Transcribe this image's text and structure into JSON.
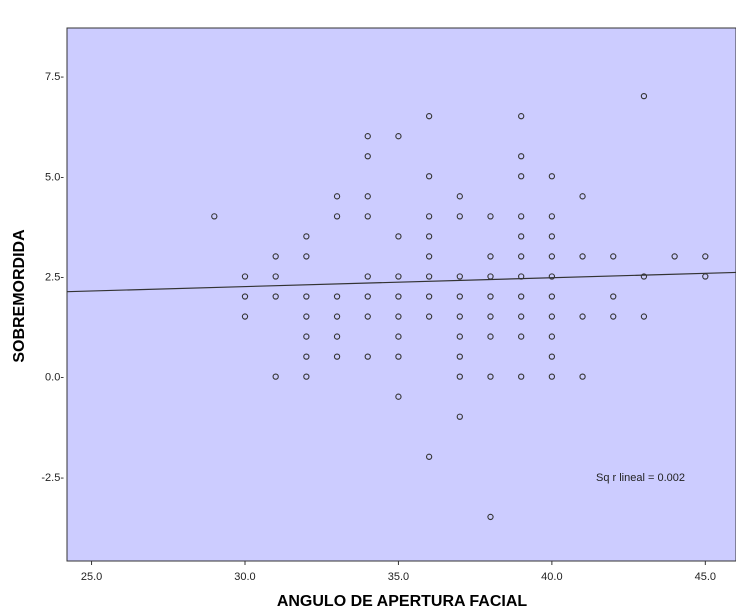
{
  "chart_data": {
    "type": "scatter",
    "xlabel": "ANGULO DE APERTURA FACIAL",
    "ylabel": "SOBREMORDIDA",
    "xlim": [
      24.2,
      46.0
    ],
    "ylim": [
      -4.6,
      8.7
    ],
    "x_ticks": [
      25.0,
      30.0,
      35.0,
      40.0,
      45.0
    ],
    "x_tick_labels": [
      "25.0",
      "30.0",
      "35.0",
      "40.0",
      "45.0"
    ],
    "y_ticks": [
      7.5,
      5.0,
      2.5,
      0.0,
      -2.5
    ],
    "y_tick_labels": [
      "7.5-",
      "5.0-",
      "2.5-",
      "0.0-",
      "-2.5-"
    ],
    "plot_background": "#ccccff",
    "marker_color": "#333333",
    "fit_line": {
      "type": "linear",
      "x": [
        24.2,
        46.0
      ],
      "y": [
        2.12,
        2.6
      ],
      "color": "#333333"
    },
    "annotation": "Sq r lineal = 0.002",
    "grid": false,
    "legend": "none",
    "points": [
      {
        "x": 29,
        "y": 4
      },
      {
        "x": 30,
        "y": 2.5
      },
      {
        "x": 30,
        "y": 2
      },
      {
        "x": 30,
        "y": 1.5
      },
      {
        "x": 31,
        "y": 3
      },
      {
        "x": 31,
        "y": 2.5
      },
      {
        "x": 31,
        "y": 2
      },
      {
        "x": 31,
        "y": 0
      },
      {
        "x": 32,
        "y": 3.5
      },
      {
        "x": 32,
        "y": 3
      },
      {
        "x": 32,
        "y": 2
      },
      {
        "x": 32,
        "y": 1.5
      },
      {
        "x": 32,
        "y": 1
      },
      {
        "x": 32,
        "y": 0.5
      },
      {
        "x": 32,
        "y": 0
      },
      {
        "x": 33,
        "y": 4.5
      },
      {
        "x": 33,
        "y": 4
      },
      {
        "x": 33,
        "y": 2
      },
      {
        "x": 33,
        "y": 1.5
      },
      {
        "x": 33,
        "y": 1
      },
      {
        "x": 33,
        "y": 0.5
      },
      {
        "x": 34,
        "y": 6
      },
      {
        "x": 34,
        "y": 5.5
      },
      {
        "x": 34,
        "y": 4.5
      },
      {
        "x": 34,
        "y": 4
      },
      {
        "x": 34,
        "y": 2.5
      },
      {
        "x": 34,
        "y": 2
      },
      {
        "x": 34,
        "y": 1.5
      },
      {
        "x": 34,
        "y": 0.5
      },
      {
        "x": 35,
        "y": 6
      },
      {
        "x": 35,
        "y": 3.5
      },
      {
        "x": 35,
        "y": 2.5
      },
      {
        "x": 35,
        "y": 2
      },
      {
        "x": 35,
        "y": 1.5
      },
      {
        "x": 35,
        "y": 1
      },
      {
        "x": 35,
        "y": 0.5
      },
      {
        "x": 35,
        "y": -0.5
      },
      {
        "x": 36,
        "y": 6.5
      },
      {
        "x": 36,
        "y": 5
      },
      {
        "x": 36,
        "y": 4
      },
      {
        "x": 36,
        "y": 3.5
      },
      {
        "x": 36,
        "y": 3
      },
      {
        "x": 36,
        "y": 2.5
      },
      {
        "x": 36,
        "y": 2
      },
      {
        "x": 36,
        "y": 1.5
      },
      {
        "x": 36,
        "y": -2
      },
      {
        "x": 37,
        "y": 4.5
      },
      {
        "x": 37,
        "y": 4
      },
      {
        "x": 37,
        "y": 2.5
      },
      {
        "x": 37,
        "y": 2
      },
      {
        "x": 37,
        "y": 1.5
      },
      {
        "x": 37,
        "y": 1
      },
      {
        "x": 37,
        "y": 0.5
      },
      {
        "x": 37,
        "y": 0
      },
      {
        "x": 37,
        "y": -1
      },
      {
        "x": 38,
        "y": 4
      },
      {
        "x": 38,
        "y": 3
      },
      {
        "x": 38,
        "y": 2.5
      },
      {
        "x": 38,
        "y": 2
      },
      {
        "x": 38,
        "y": 1.5
      },
      {
        "x": 38,
        "y": 1
      },
      {
        "x": 38,
        "y": 0
      },
      {
        "x": 38,
        "y": -3.5
      },
      {
        "x": 39,
        "y": 6.5
      },
      {
        "x": 39,
        "y": 5.5
      },
      {
        "x": 39,
        "y": 5
      },
      {
        "x": 39,
        "y": 4
      },
      {
        "x": 39,
        "y": 3.5
      },
      {
        "x": 39,
        "y": 3
      },
      {
        "x": 39,
        "y": 2.5
      },
      {
        "x": 39,
        "y": 2
      },
      {
        "x": 39,
        "y": 1.5
      },
      {
        "x": 39,
        "y": 1
      },
      {
        "x": 39,
        "y": 0
      },
      {
        "x": 40,
        "y": 5
      },
      {
        "x": 40,
        "y": 4
      },
      {
        "x": 40,
        "y": 3.5
      },
      {
        "x": 40,
        "y": 3
      },
      {
        "x": 40,
        "y": 2.5
      },
      {
        "x": 40,
        "y": 2
      },
      {
        "x": 40,
        "y": 1.5
      },
      {
        "x": 40,
        "y": 1
      },
      {
        "x": 40,
        "y": 0.5
      },
      {
        "x": 40,
        "y": 0
      },
      {
        "x": 41,
        "y": 4.5
      },
      {
        "x": 41,
        "y": 3
      },
      {
        "x": 41,
        "y": 1.5
      },
      {
        "x": 41,
        "y": 0
      },
      {
        "x": 42,
        "y": 3
      },
      {
        "x": 42,
        "y": 2
      },
      {
        "x": 42,
        "y": 1.5
      },
      {
        "x": 43,
        "y": 7
      },
      {
        "x": 43,
        "y": 2.5
      },
      {
        "x": 43,
        "y": 1.5
      },
      {
        "x": 44,
        "y": 3
      },
      {
        "x": 45,
        "y": 3
      },
      {
        "x": 45,
        "y": 2.5
      }
    ]
  }
}
